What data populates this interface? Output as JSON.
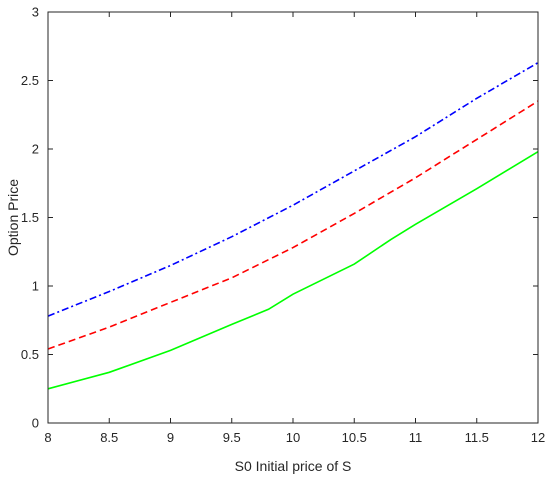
{
  "chart_data": {
    "type": "line",
    "title": "",
    "xlabel": "S0 Initial price of S",
    "ylabel": "Option Price",
    "xlim": [
      8,
      12
    ],
    "ylim": [
      0,
      3
    ],
    "xticks": [
      "8",
      "8.5",
      "9",
      "9.5",
      "10",
      "10.5",
      "11",
      "11.5",
      "12"
    ],
    "yticks": [
      "0",
      "0.5",
      "1",
      "1.5",
      "2",
      "2.5",
      "3"
    ],
    "grid": false,
    "legend": "none",
    "series": [
      {
        "color": "#0000ff",
        "style": "dashdot",
        "x": [
          8,
          8.5,
          9,
          9.5,
          10,
          10.5,
          11,
          11.5,
          12
        ],
        "y": [
          0.78,
          0.96,
          1.15,
          1.36,
          1.59,
          1.84,
          2.09,
          2.37,
          2.63
        ]
      },
      {
        "color": "#ff0000",
        "style": "dashed",
        "x": [
          8,
          8.5,
          9,
          9.5,
          10,
          10.5,
          11,
          11.5,
          12
        ],
        "y": [
          0.54,
          0.7,
          0.88,
          1.06,
          1.28,
          1.53,
          1.79,
          2.07,
          2.35
        ]
      },
      {
        "color": "#00ff00",
        "style": "solid",
        "x": [
          8,
          8.5,
          9,
          9.5,
          9.8,
          10,
          10.5,
          10.8,
          11,
          11.5,
          12
        ],
        "y": [
          0.25,
          0.37,
          0.53,
          0.72,
          0.83,
          0.94,
          1.16,
          1.34,
          1.45,
          1.71,
          1.98
        ]
      }
    ]
  }
}
